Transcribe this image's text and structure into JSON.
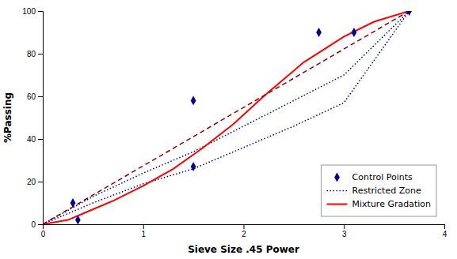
{
  "chart_data": {
    "type": "line",
    "xlabel": "Sieve Size .45 Power",
    "ylabel": "%Passing",
    "xlim": [
      0,
      4
    ],
    "ylim": [
      0,
      100
    ],
    "xticks": [
      0,
      1,
      2,
      3,
      4
    ],
    "yticks": [
      0,
      20,
      40,
      60,
      80,
      100
    ],
    "grid": false,
    "legend": "lower right",
    "series": [
      {
        "name": "Control Points",
        "type": "scatter",
        "marker": "diamond",
        "color": "#00008B",
        "x": [
          0.3,
          0.35,
          1.5,
          1.5,
          2.75,
          3.1,
          3.65
        ],
        "values": [
          10,
          2,
          58,
          27,
          90,
          90,
          100
        ]
      },
      {
        "name": "Restricted Zone",
        "type": "line",
        "line_style": "dotted",
        "color": "#00008B",
        "x": [
          0.0,
          0.5,
          1.0,
          1.5,
          2.0,
          2.5,
          3.0,
          3.65
        ],
        "values": [
          0,
          13,
          24,
          34,
          46,
          58,
          70,
          100
        ]
      },
      {
        "type": "line",
        "line_style": "dotted",
        "color": "#00008B",
        "x": [
          0.0,
          0.5,
          1.0,
          1.5,
          2.0,
          2.5,
          3.0,
          3.65
        ],
        "values": [
          0,
          10,
          19,
          26,
          36,
          46,
          57,
          100
        ]
      },
      {
        "name": "Mixture Gradation",
        "type": "line",
        "line_style": "solid",
        "color": "#FF0000",
        "x": [
          0.0,
          0.25,
          0.4,
          0.7,
          1.0,
          1.3,
          1.6,
          1.9,
          2.2,
          2.6,
          3.0,
          3.3,
          3.65
        ],
        "values": [
          0,
          2,
          5,
          11,
          18,
          26,
          36,
          47,
          60,
          76,
          88,
          95,
          100
        ]
      },
      {
        "type": "line",
        "line_style": "dashed",
        "color": "#8B0000",
        "x": [
          0,
          3.65
        ],
        "values": [
          0,
          100
        ]
      }
    ]
  }
}
